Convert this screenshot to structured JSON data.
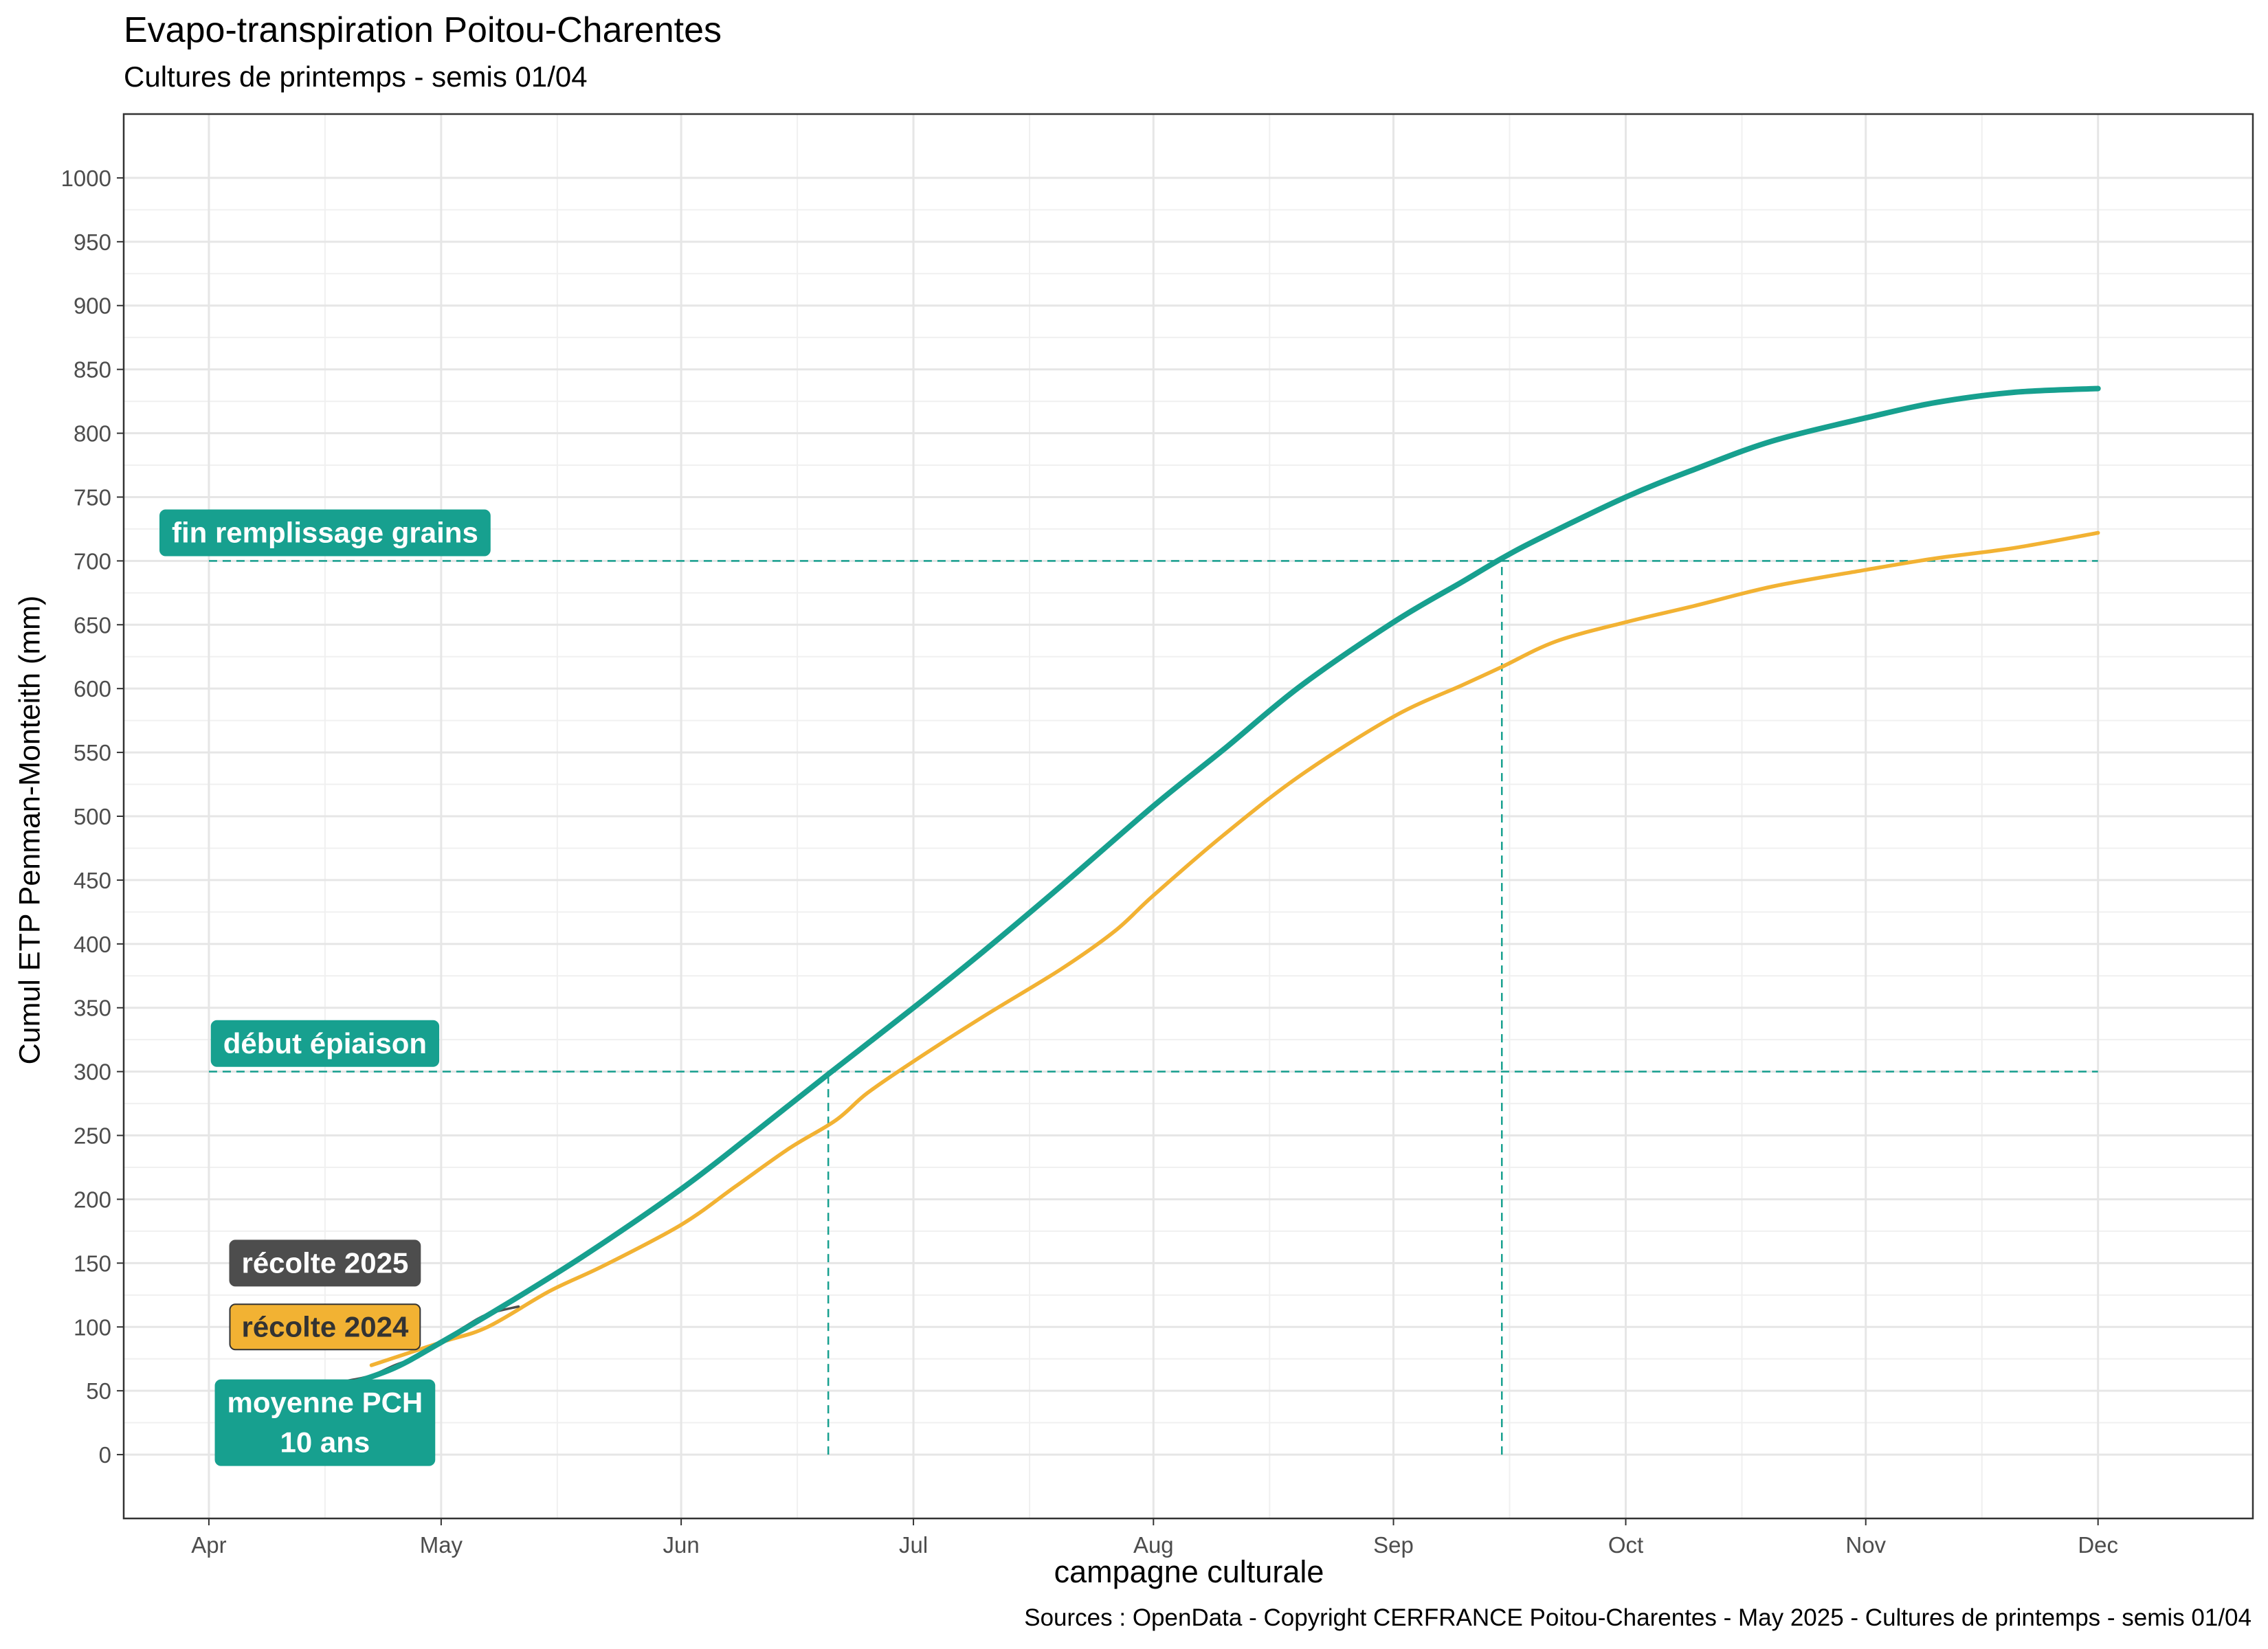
{
  "chart_data": {
    "type": "line",
    "title": "Evapo-transpiration Poitou-Charentes",
    "subtitle": "Cultures de printemps - semis 01/04",
    "xlabel": "campagne culturale",
    "ylabel": "Cumul ETP Penman-Monteith (mm)",
    "caption": "Sources : OpenData - Copyright CERFRANCE Poitou-Charentes - May 2025 - Cultures de printemps - semis 01/04",
    "x_axis_type": "date",
    "xlim": [
      "2025-03-21",
      "2025-12-21"
    ],
    "x_ticks": [
      {
        "date": "2025-04-01",
        "label": "Apr"
      },
      {
        "date": "2025-05-01",
        "label": "May"
      },
      {
        "date": "2025-06-01",
        "label": "Jun"
      },
      {
        "date": "2025-07-01",
        "label": "Jul"
      },
      {
        "date": "2025-08-01",
        "label": "Aug"
      },
      {
        "date": "2025-09-01",
        "label": "Sep"
      },
      {
        "date": "2025-10-01",
        "label": "Oct"
      },
      {
        "date": "2025-11-01",
        "label": "Nov"
      },
      {
        "date": "2025-12-01",
        "label": "Dec"
      }
    ],
    "ylim": [
      -50,
      1050
    ],
    "y_ticks": [
      0,
      50,
      100,
      150,
      200,
      250,
      300,
      350,
      400,
      450,
      500,
      550,
      600,
      650,
      700,
      750,
      800,
      850,
      900,
      950,
      1000
    ],
    "grid": true,
    "series": [
      {
        "name": "moyenne PCH\n10 ans",
        "color": "#17a08f",
        "x": [
          "2025-04-19",
          "2025-04-25",
          "2025-05-01",
          "2025-05-10",
          "2025-05-20",
          "2025-06-01",
          "2025-06-10",
          "2025-06-20",
          "2025-07-01",
          "2025-07-10",
          "2025-07-20",
          "2025-08-01",
          "2025-08-10",
          "2025-08-20",
          "2025-09-01",
          "2025-09-10",
          "2025-09-15",
          "2025-09-20",
          "2025-10-01",
          "2025-10-10",
          "2025-10-20",
          "2025-11-01",
          "2025-11-10",
          "2025-11-20",
          "2025-12-01"
        ],
        "values": [
          55,
          68,
          88,
          120,
          158,
          208,
          250,
          298,
          350,
          394,
          445,
          508,
          552,
          602,
          652,
          684,
          702,
          718,
          750,
          772,
          794,
          812,
          824,
          832,
          835
        ]
      },
      {
        "name": "récolte 2024",
        "color": "#f2b233",
        "x": [
          "2025-04-22",
          "2025-05-01",
          "2025-05-07",
          "2025-05-15",
          "2025-05-22",
          "2025-06-01",
          "2025-06-08",
          "2025-06-15",
          "2025-06-21",
          "2025-06-25",
          "2025-07-01",
          "2025-07-10",
          "2025-07-20",
          "2025-07-27",
          "2025-08-01",
          "2025-08-10",
          "2025-08-20",
          "2025-09-01",
          "2025-09-10",
          "2025-09-15",
          "2025-09-22",
          "2025-10-01",
          "2025-10-10",
          "2025-10-20",
          "2025-11-01",
          "2025-11-10",
          "2025-11-20",
          "2025-12-01"
        ],
        "values": [
          70,
          88,
          100,
          128,
          148,
          180,
          210,
          240,
          262,
          283,
          308,
          343,
          380,
          410,
          438,
          485,
          532,
          578,
          603,
          617,
          637,
          652,
          665,
          680,
          693,
          702,
          710,
          722
        ]
      },
      {
        "name": "récolte 2025",
        "color": "#4d4d4d",
        "x": [
          "2025-04-19",
          "2025-04-22",
          "2025-04-25",
          "2025-04-28",
          "2025-05-01",
          "2025-05-04",
          "2025-05-07",
          "2025-05-11"
        ],
        "values": [
          58,
          62,
          70,
          77,
          88,
          100,
          110,
          116
        ]
      }
    ],
    "reference_lines": [
      {
        "label": "début épiaison",
        "orientation": "horizontal",
        "y": 300,
        "x_from": "2025-04-01",
        "x_to": "2025-12-01",
        "color": "#17a08f"
      },
      {
        "label": "fin remplissage grains",
        "orientation": "horizontal",
        "y": 700,
        "x_from": "2025-04-01",
        "x_to": "2025-12-01",
        "color": "#17a08f"
      },
      {
        "orientation": "vertical",
        "x": "2025-06-20",
        "y_from": 0,
        "y_to": 300,
        "color": "#17a08f"
      },
      {
        "orientation": "vertical",
        "x": "2025-09-15",
        "y_from": 0,
        "y_to": 700,
        "color": "#17a08f"
      }
    ],
    "labels": [
      {
        "text": "fin remplissage grains",
        "anchor_date": "2025-04-16",
        "anchor_value": 722,
        "fill": "#17a08f",
        "text_color": "#ffffff"
      },
      {
        "text": "début épiaison",
        "anchor_date": "2025-04-16",
        "anchor_value": 322,
        "fill": "#17a08f",
        "text_color": "#ffffff"
      },
      {
        "text": "récolte 2025",
        "anchor_date": "2025-04-16",
        "anchor_value": 150,
        "fill": "#4d4d4d",
        "text_color": "#ffffff"
      },
      {
        "text": "récolte 2024",
        "anchor_date": "2025-04-16",
        "anchor_value": 100,
        "fill": "#f2b233",
        "text_color": "#333333"
      },
      {
        "text": "moyenne PCH\n10 ans",
        "anchor_date": "2025-04-16",
        "anchor_value": 25,
        "fill": "#17a08f",
        "text_color": "#ffffff"
      }
    ]
  }
}
